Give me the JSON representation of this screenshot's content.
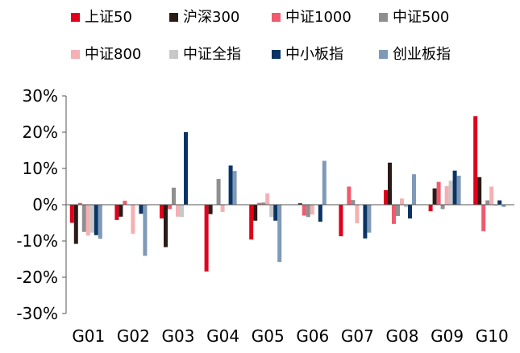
{
  "chart_data": {
    "type": "bar",
    "title": "",
    "xlabel": "",
    "ylabel": "",
    "ylim": [
      -30,
      30
    ],
    "y_ticks": [
      30,
      20,
      10,
      0,
      -10,
      -20,
      -30
    ],
    "y_tick_labels": [
      "30%",
      "20%",
      "10%",
      "0%",
      "-10%",
      "-20%",
      "-30%"
    ],
    "grid": false,
    "legend_position": "top",
    "categories": [
      "G01",
      "G02",
      "G03",
      "G04",
      "G05",
      "G06",
      "G07",
      "G08",
      "G09",
      "G10"
    ],
    "series": [
      {
        "name": "上证50",
        "color": "#e0001b",
        "values": [
          -5.0,
          -4.2,
          -3.8,
          -18.4,
          -9.6,
          0.0,
          -8.7,
          4.0,
          -1.8,
          24.4
        ]
      },
      {
        "name": "沪深300",
        "color": "#2b1b17",
        "values": [
          -10.8,
          -3.3,
          -11.7,
          -2.6,
          -4.4,
          0.4,
          0.0,
          11.6,
          4.5,
          7.6
        ]
      },
      {
        "name": "中证1000",
        "color": "#f05a6e",
        "values": [
          0.5,
          1.1,
          -1.2,
          -0.1,
          0.5,
          -3.0,
          5.0,
          -5.3,
          6.3,
          -7.3
        ]
      },
      {
        "name": "中证500",
        "color": "#8f8f8f",
        "values": [
          -7.5,
          -0.1,
          4.7,
          7.1,
          0.6,
          -3.4,
          1.3,
          -3.1,
          -1.2,
          1.2
        ]
      },
      {
        "name": "中证800",
        "color": "#f4b0b3",
        "values": [
          -8.5,
          -8.0,
          -3.3,
          -2.0,
          3.1,
          -2.7,
          -5.1,
          1.7,
          5.1,
          5.0
        ]
      },
      {
        "name": "中证全指",
        "color": "#c8c8c8",
        "values": [
          -7.7,
          -0.1,
          -3.4,
          -0.1,
          -3.4,
          -0.1,
          0.0,
          -0.7,
          6.6,
          -0.3
        ]
      },
      {
        "name": "中小板指",
        "color": "#0a3465",
        "values": [
          -8.4,
          -2.5,
          20.0,
          10.8,
          -4.4,
          -4.7,
          -9.3,
          -3.8,
          9.4,
          1.2
        ]
      },
      {
        "name": "创业板指",
        "color": "#7f9ab8",
        "values": [
          -9.4,
          -14.1,
          0.0,
          9.3,
          -15.8,
          12.1,
          -7.7,
          8.4,
          8.0,
          -0.6
        ]
      }
    ]
  }
}
